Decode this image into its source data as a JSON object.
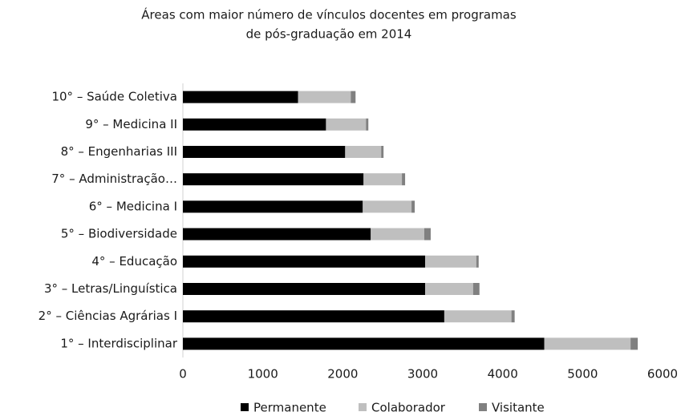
{
  "chart_data": {
    "type": "stacked-barh",
    "title": [
      "Áreas com maior número de vínculos docentes  em programas",
      "de pós-graduação em 2014"
    ],
    "categories": [
      "10° – Saúde Coletiva",
      "9° – Medicina II",
      "8° – Engenharias III",
      "7° – Administração…",
      "6° – Medicina I",
      "5° – Biodiversidade",
      "4° – Educação",
      "3° – Letras/Linguística",
      "2° – Ciências Agrárias I",
      "1° – Interdisciplinar"
    ],
    "series": [
      {
        "name": "Permanente",
        "color": "#000000",
        "values": [
          1440,
          1790,
          2030,
          2260,
          2250,
          2350,
          3030,
          3030,
          3270,
          4520
        ]
      },
      {
        "name": "Colaborador",
        "color": "#bfbfbf",
        "values": [
          660,
          500,
          450,
          480,
          610,
          670,
          640,
          600,
          840,
          1080
        ]
      },
      {
        "name": "Visitante",
        "color": "#808080",
        "values": [
          60,
          30,
          30,
          40,
          40,
          80,
          30,
          80,
          40,
          90
        ]
      }
    ],
    "xlim": [
      0,
      6000
    ],
    "xticks": [
      0,
      1000,
      2000,
      3000,
      4000,
      5000,
      6000
    ],
    "legend": "bottom"
  }
}
